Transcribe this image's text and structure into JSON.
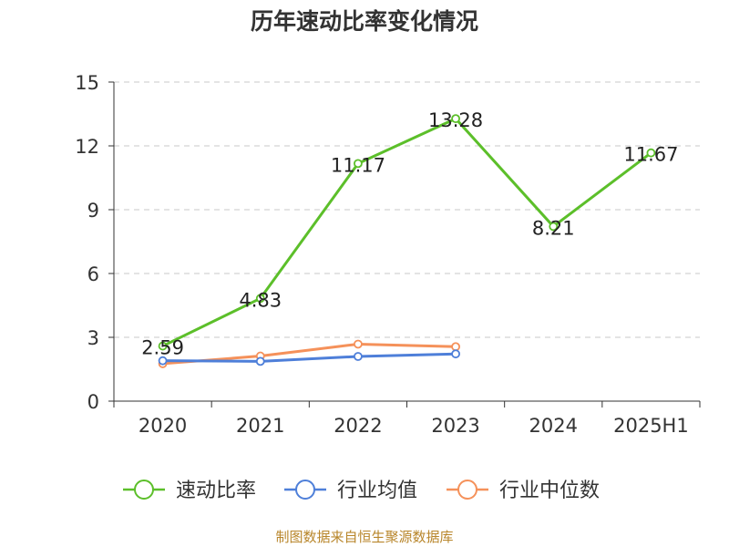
{
  "chart_data": {
    "type": "line",
    "title": "历年速动比率变化情况",
    "categories": [
      "2020",
      "2021",
      "2022",
      "2023",
      "2024",
      "2025H1"
    ],
    "y_axis": {
      "min": 0,
      "max": 15,
      "ticks": [
        0,
        3,
        6,
        9,
        12,
        15
      ]
    },
    "grid": "horizontal dashed",
    "legend_position": "bottom",
    "series": [
      {
        "name": "速动比率",
        "color": "#5cbf2a",
        "values": [
          2.59,
          4.83,
          11.17,
          13.28,
          8.21,
          11.67
        ],
        "show_labels": true
      },
      {
        "name": "行业均值",
        "color": "#4e7fd9",
        "values": [
          1.9,
          1.87,
          2.1,
          2.22,
          null,
          null
        ],
        "show_labels": false
      },
      {
        "name": "行业中位数",
        "color": "#f5915a",
        "values": [
          1.76,
          2.12,
          2.68,
          2.56,
          null,
          null
        ],
        "show_labels": false
      }
    ]
  },
  "footer": {
    "source": "制图数据来自恒生聚源数据库"
  }
}
